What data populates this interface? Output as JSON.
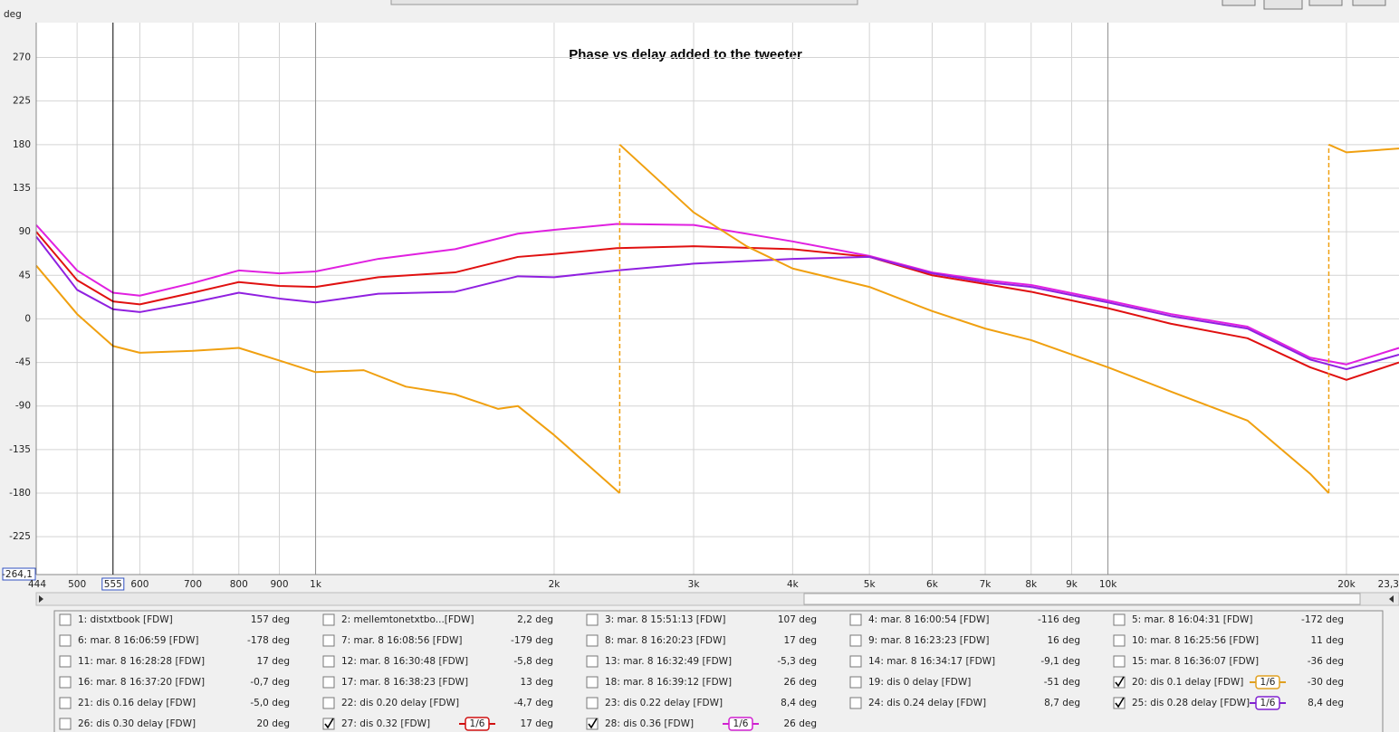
{
  "chart_data": {
    "type": "line",
    "title": "Phase vs delay added to the tweeter",
    "y_label": "deg",
    "x_scale": "log",
    "xlim": [
      444,
      23300
    ],
    "ylim": [
      -264.1,
      306
    ],
    "xticks": [
      444,
      500,
      600,
      700,
      800,
      900,
      {
        "value": 1000,
        "label": "1k"
      },
      {
        "value": 2000,
        "label": "2k"
      },
      {
        "value": 3000,
        "label": "3k"
      },
      {
        "value": 4000,
        "label": "4k"
      },
      {
        "value": 5000,
        "label": "5k"
      },
      {
        "value": 6000,
        "label": "6k"
      },
      {
        "value": 7000,
        "label": "7k"
      },
      {
        "value": 8000,
        "label": "8k"
      },
      {
        "value": 9000,
        "label": "9k"
      },
      {
        "value": 10000,
        "label": "10k"
      },
      {
        "value": 20000,
        "label": "20k"
      },
      {
        "value": 23300,
        "label": "23,3"
      }
    ],
    "yticks": [
      {
        "value": -264.1,
        "label": "-264,1"
      },
      -225,
      -180,
      -135,
      -90,
      -45,
      0,
      45,
      90,
      135,
      180,
      225,
      270
    ],
    "grid": true,
    "cursor": {
      "value": 555,
      "label": "555"
    },
    "x": [
      444,
      500,
      555,
      600,
      700,
      800,
      900,
      1000,
      1200,
      1500,
      1800,
      2000,
      2400,
      3000,
      4000,
      5000,
      6000,
      7000,
      8000,
      10000,
      12000,
      15000,
      18000,
      20000,
      23300
    ],
    "series": [
      {
        "color": "#e020e0",
        "values": [
          97,
          50,
          27,
          24,
          37,
          50,
          47,
          49,
          62,
          72,
          88,
          92,
          98,
          97,
          80,
          65,
          48,
          40,
          35,
          19,
          5,
          -8,
          -40,
          -47,
          -30
        ]
      },
      {
        "color": "#e01010",
        "values": [
          90,
          40,
          18,
          15,
          27,
          38,
          34,
          33,
          43,
          48,
          64,
          67,
          73,
          75,
          72,
          64,
          45,
          36,
          28,
          11,
          -5,
          -20,
          -50,
          -63,
          -45
        ]
      },
      {
        "color": "#9020e0",
        "values": [
          85,
          30,
          10,
          7,
          17,
          27,
          21,
          17,
          26,
          28,
          44,
          43,
          50,
          57,
          62,
          64,
          47,
          38,
          33,
          17,
          3,
          -10,
          -42,
          -52,
          -37
        ]
      },
      {
        "color": "#f0a010",
        "x": [
          444,
          500,
          555,
          600,
          700,
          800,
          900,
          1000,
          1150,
          1300,
          1500,
          1700,
          1800,
          2000,
          2200,
          2420,
          2420,
          3000,
          3500,
          4000,
          5000,
          6000,
          7000,
          8000,
          10000,
          12000,
          15000,
          18000,
          19000,
          19000,
          20000,
          23300
        ],
        "values": [
          55,
          5,
          -28,
          -35,
          -33,
          -30,
          -43,
          -55,
          -53,
          -70,
          -78,
          -93,
          -90,
          -120,
          -150,
          -180,
          180,
          110,
          75,
          52,
          33,
          8,
          -10,
          -22,
          -50,
          -75,
          -105,
          -160,
          -180,
          180,
          172,
          176
        ]
      }
    ]
  },
  "legend": [
    {
      "label": "1: distxtbook [FDW]",
      "value": "157 deg",
      "color": "#d020d0",
      "checked": false
    },
    {
      "label": "2: mellemtonetxtbo...[FDW]",
      "value": "2,2 deg",
      "color": "#d01010",
      "checked": false
    },
    {
      "label": "3: mar. 8 15:51:13 [FDW]",
      "value": "107 deg",
      "color": "#208020",
      "checked": false
    },
    {
      "label": "4: mar. 8 16:00:54 [FDW]",
      "value": "-116 deg",
      "color": "#3030c0",
      "checked": false
    },
    {
      "label": "5: mar. 8 16:04:31 [FDW]",
      "value": "-172 deg",
      "color": "#e0a020",
      "checked": false
    },
    {
      "label": "6: mar. 8 16:06:59 [FDW]",
      "value": "-178 deg",
      "color": "#20a020",
      "checked": false
    },
    {
      "label": "7: mar. 8 16:08:56 [FDW]",
      "value": "-179 deg",
      "color": "#2080d0",
      "checked": false
    },
    {
      "label": "8: mar. 8 16:20:23 [FDW]",
      "value": "17 deg",
      "color": "#d07010",
      "checked": false
    },
    {
      "label": "9: mar. 8 16:23:23 [FDW]",
      "value": "16 deg",
      "color": "#20a0a0",
      "checked": false
    },
    {
      "label": "10: mar. 8 16:25:56 [FDW]",
      "value": "11 deg",
      "color": "#8020d0",
      "checked": false
    },
    {
      "label": "11: mar. 8 16:28:28 [FDW]",
      "value": "17 deg",
      "color": "#d020d0",
      "checked": false
    },
    {
      "label": "12: mar. 8 16:30:48 [FDW]",
      "value": "-5,8 deg",
      "color": "#d01010",
      "checked": false
    },
    {
      "label": "13: mar. 8 16:32:49 [FDW]",
      "value": "-5,3 deg",
      "color": "#208020",
      "checked": false
    },
    {
      "label": "14: mar. 8 16:34:17 [FDW]",
      "value": "-9,1 deg",
      "color": "#3030c0",
      "checked": false
    },
    {
      "label": "15: mar. 8 16:36:07 [FDW]",
      "value": "-36 deg",
      "color": "#e0a020",
      "checked": false
    },
    {
      "label": "16: mar. 8 16:37:20 [FDW]",
      "value": "-0,7 deg",
      "color": "#20a020",
      "checked": false
    },
    {
      "label": "17: mar. 8 16:38:23 [FDW]",
      "value": "13 deg",
      "color": "#2080d0",
      "checked": false
    },
    {
      "label": "18: mar. 8 16:39:12 [FDW]",
      "value": "26 deg",
      "color": "#d07010",
      "checked": false
    },
    {
      "label": "19: dis 0 delay [FDW]",
      "value": "-51 deg",
      "color": "#3030c0",
      "checked": false
    },
    {
      "label": "20: dis 0.1 delay [FDW]",
      "value": "-30 deg",
      "color": "#e0a020",
      "checked": true,
      "smoothing": "1/6"
    },
    {
      "label": "21: dis 0.16 delay [FDW]",
      "value": "-5,0 deg",
      "color": "#20a020",
      "checked": false
    },
    {
      "label": "22: dis 0.20 delay [FDW]",
      "value": "-4,7 deg",
      "color": "#2080d0",
      "checked": false
    },
    {
      "label": "23: dis 0.22 delay [FDW]",
      "value": "8,4 deg",
      "color": "#d07010",
      "checked": false
    },
    {
      "label": "24: dis 0.24 delay [FDW]",
      "value": "8,7 deg",
      "color": "#20a0a0",
      "checked": false
    },
    {
      "label": "25: dis 0.28 delay [FDW]",
      "value": "8,4 deg",
      "color": "#8020d0",
      "checked": true,
      "smoothing": "1/6"
    },
    {
      "label": "26: dis 0.30 delay [FDW]",
      "value": "20 deg",
      "color": "#208020",
      "checked": false
    },
    {
      "label": "27: dis 0.32 [FDW]",
      "value": "17 deg",
      "color": "#d01010",
      "checked": true,
      "smoothing": "1/6"
    },
    {
      "label": "28: dis 0.36 [FDW]",
      "value": "26 deg",
      "color": "#d020d0",
      "checked": true,
      "smoothing": "1/6"
    }
  ]
}
